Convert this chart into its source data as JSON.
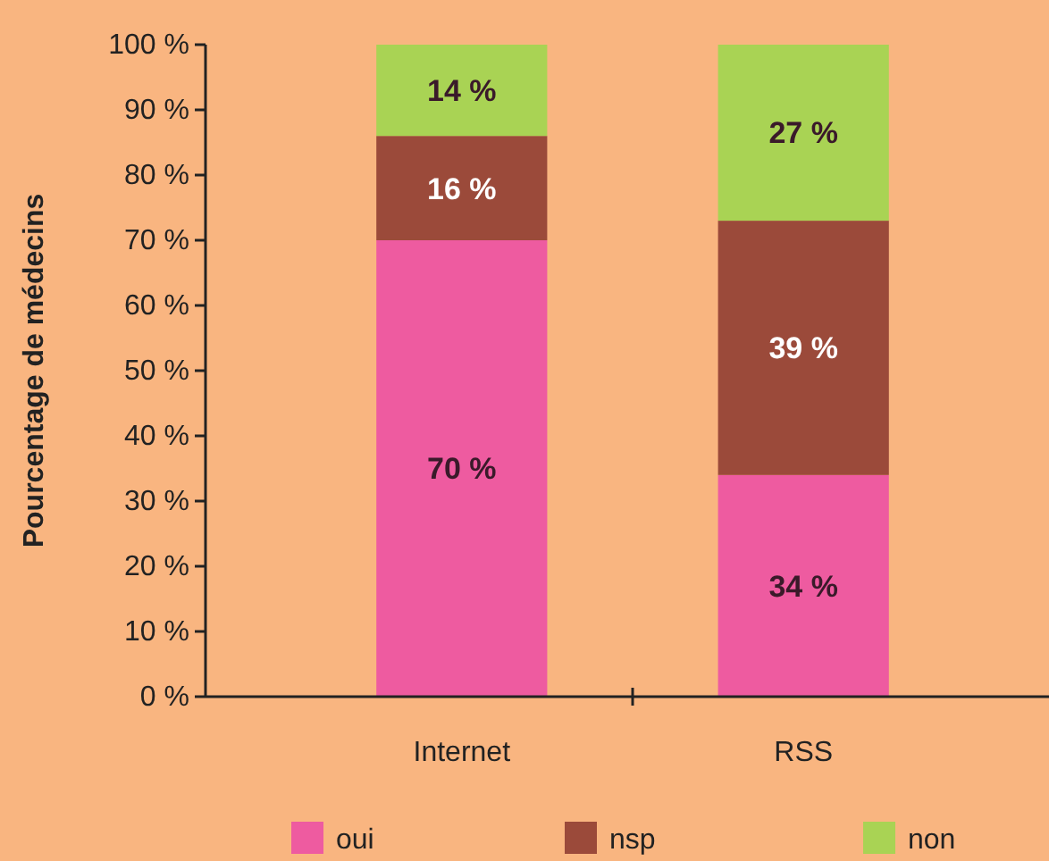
{
  "chart_data": {
    "type": "bar",
    "stacked": true,
    "ylabel": "Pourcentage de médecins",
    "categories": [
      "Internet",
      "RSS"
    ],
    "series": [
      {
        "name": "oui",
        "color": "#ee5ba0",
        "values": [
          70,
          34
        ],
        "value_labels": [
          "70 %",
          "34 %"
        ]
      },
      {
        "name": "nsp",
        "color": "#9b4a3a",
        "values": [
          16,
          39
        ],
        "value_labels": [
          "16 %",
          "39 %"
        ]
      },
      {
        "name": "non",
        "color": "#a9d354",
        "values": [
          14,
          27
        ],
        "value_labels": [
          "14 %",
          "27 %"
        ]
      }
    ],
    "ylim": [
      0,
      100
    ],
    "yticks": [
      {
        "value": 0,
        "label": "0 %"
      },
      {
        "value": 10,
        "label": "10 %"
      },
      {
        "value": 20,
        "label": "20 %"
      },
      {
        "value": 30,
        "label": "30 %"
      },
      {
        "value": 40,
        "label": "40 %"
      },
      {
        "value": 50,
        "label": "50 %"
      },
      {
        "value": 60,
        "label": "60 %"
      },
      {
        "value": 70,
        "label": "70 %"
      },
      {
        "value": 80,
        "label": "80 %"
      },
      {
        "value": 90,
        "label": "90 %"
      },
      {
        "value": 100,
        "label": "100 %"
      }
    ],
    "grid": false,
    "legend": "bottom"
  }
}
